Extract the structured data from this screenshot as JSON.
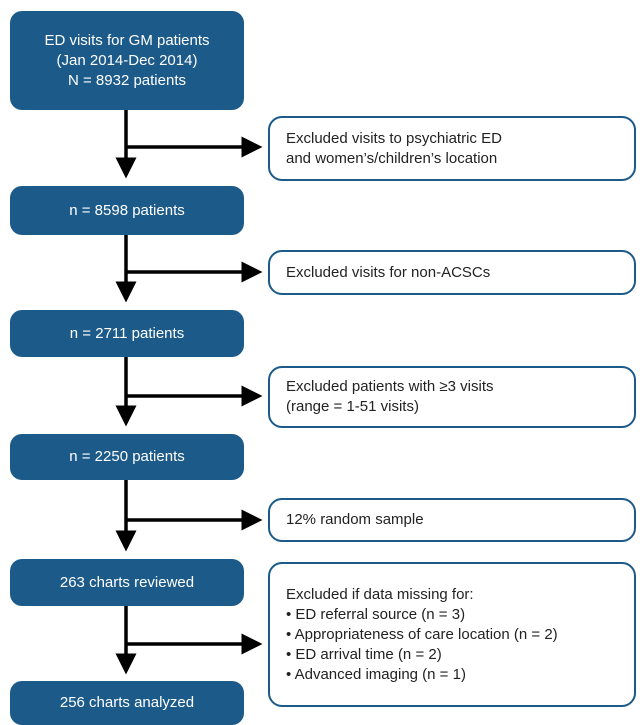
{
  "main_boxes": [
    {
      "lines": [
        "ED visits for GM patients",
        "(Jan 2014-Dec 2014)",
        "N = 8932 patients"
      ]
    },
    {
      "lines": [
        "n = 8598 patients"
      ]
    },
    {
      "lines": [
        "n = 2711 patients"
      ]
    },
    {
      "lines": [
        "n = 2250 patients"
      ]
    },
    {
      "lines": [
        "263 charts reviewed"
      ]
    },
    {
      "lines": [
        "256 charts analyzed"
      ]
    }
  ],
  "exclusion_boxes": [
    {
      "lines": [
        "Excluded visits to psychiatric ED",
        "and women’s/children’s location"
      ]
    },
    {
      "lines": [
        "Excluded visits for non-ACSCs"
      ]
    },
    {
      "lines": [
        "Excluded patients with ≥3 visits",
        "(range = 1-51 visits)"
      ]
    },
    {
      "lines": [
        "12% random sample"
      ]
    },
    {
      "title": "Excluded if data missing for:",
      "bullets": [
        "ED referral source (n = 3)",
        "Appropriateness of care location (n = 2)",
        "ED arrival time (n = 2)",
        "Advanced imaging (n = 1)"
      ]
    }
  ],
  "colors": {
    "box_fill": "#1c5a8a",
    "box_border": "#1c5a8a",
    "arrow": "#000000"
  }
}
